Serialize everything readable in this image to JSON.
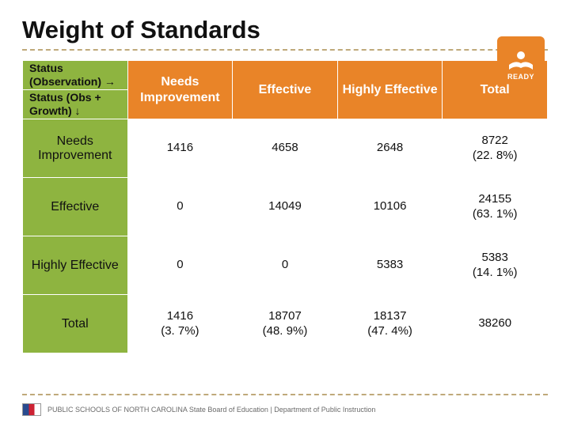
{
  "title": "Weight of Standards",
  "logo": {
    "label": "READY",
    "bg": "#e98428"
  },
  "table": {
    "corner_top": "Status (Observation) →",
    "corner_bottom": "Status (Obs + Growth) ↓",
    "col_headers": [
      "Needs Improvement",
      "Effective",
      "Highly Effective",
      "Total"
    ],
    "row_labels": [
      "Needs Improvement",
      "Effective",
      "Highly Effective",
      "Total"
    ],
    "cells": [
      [
        "1416",
        "4658",
        "2648",
        "8722\n(22. 8%)"
      ],
      [
        "0",
        "14049",
        "10106",
        "24155\n(63. 1%)"
      ],
      [
        "0",
        "0",
        "5383",
        "5383\n(14. 1%)"
      ],
      [
        "1416\n(3. 7%)",
        "18707\n(48. 9%)",
        "18137\n(47. 4%)",
        "38260"
      ]
    ],
    "header_left_bg": "#8eb440",
    "header_top_bg": "#e98428",
    "cell_bg": "#ffffff"
  },
  "footer": "PUBLIC SCHOOLS OF NORTH CAROLINA  State Board of Education | Department of Public Instruction",
  "colors": {
    "divider": "#bfa97a"
  }
}
